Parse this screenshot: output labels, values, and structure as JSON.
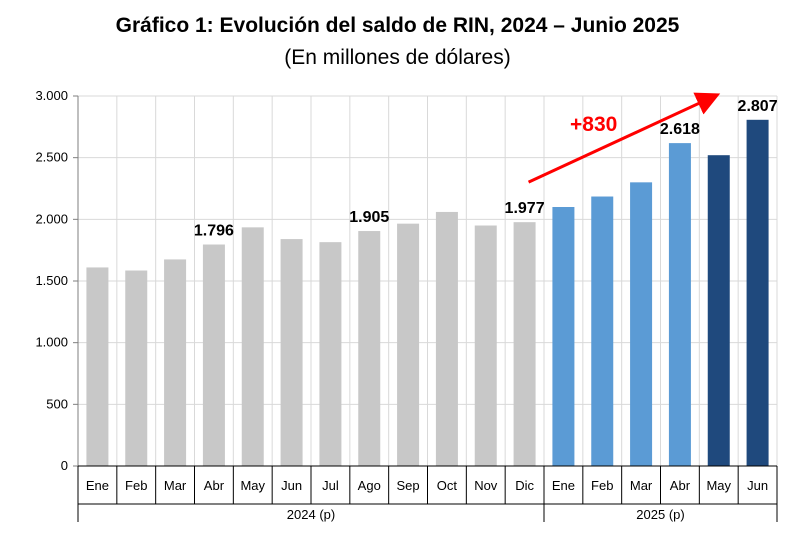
{
  "title": "Gráfico 1: Evolución del saldo de RIN, 2024 – Junio 2025",
  "subtitle": "(En millones de dólares)",
  "chart_data": {
    "type": "bar",
    "title": "Gráfico 1: Evolución del saldo de RIN, 2024 – Junio 2025",
    "subtitle": "(En millones de dólares)",
    "ylim": [
      0,
      3000
    ],
    "yticks": [
      0,
      500,
      1000,
      1500,
      2000,
      2500,
      3000
    ],
    "ytick_labels": [
      "0",
      "500",
      "1.000",
      "1.500",
      "2.000",
      "2.500",
      "3.000"
    ],
    "grid": true,
    "legend": "none",
    "categories": [
      "Ene",
      "Feb",
      "Mar",
      "Abr",
      "May",
      "Jun",
      "Jul",
      "Ago",
      "Sep",
      "Oct",
      "Nov",
      "Dic",
      "Ene",
      "Feb",
      "Mar",
      "Abr",
      "May",
      "Jun"
    ],
    "groups": [
      {
        "label": "2024 (p)",
        "start": 0,
        "end": 11
      },
      {
        "label": "2025 (p)",
        "start": 12,
        "end": 17
      }
    ],
    "values": [
      1610,
      1585,
      1675,
      1796,
      1935,
      1840,
      1815,
      1905,
      1965,
      2060,
      1950,
      1977,
      2100,
      2185,
      2300,
      2618,
      2520,
      2807
    ],
    "colors": [
      "#c8c8c8",
      "#c8c8c8",
      "#c8c8c8",
      "#c8c8c8",
      "#c8c8c8",
      "#c8c8c8",
      "#c8c8c8",
      "#c8c8c8",
      "#c8c8c8",
      "#c8c8c8",
      "#c8c8c8",
      "#c8c8c8",
      "#5b9bd5",
      "#5b9bd5",
      "#5b9bd5",
      "#5b9bd5",
      "#1f497d",
      "#1f497d"
    ],
    "data_labels": [
      {
        "index": 3,
        "text": "1.796"
      },
      {
        "index": 7,
        "text": "1.905"
      },
      {
        "index": 11,
        "text": "1.977"
      },
      {
        "index": 15,
        "text": "2.618"
      },
      {
        "index": 17,
        "text": "2.807"
      }
    ],
    "annotation": {
      "text": "+830",
      "color": "#ff0000",
      "from_index": 11,
      "to_index": 16
    }
  }
}
